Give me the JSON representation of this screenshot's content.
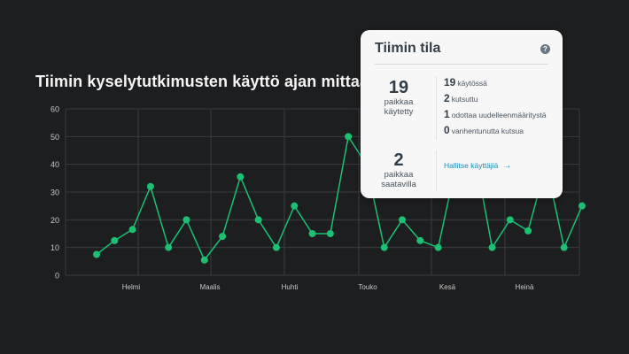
{
  "chart_data": {
    "type": "line",
    "title": "Tiimin kyselytutkimusten käyttö ajan mittaan",
    "xlabel": "",
    "ylabel": "",
    "ylim": [
      0,
      60
    ],
    "yticks": [
      0,
      10,
      20,
      30,
      40,
      50,
      60
    ],
    "x_tick_labels": [
      "Helmi",
      "Maalis",
      "Huhti",
      "Touko",
      "Kesä",
      "Heinä"
    ],
    "grid": true,
    "series": [
      {
        "name": "Käyttö",
        "color": "#1dbf73",
        "values": [
          7.5,
          12.5,
          16.5,
          32,
          10,
          20,
          5.5,
          14,
          35.5,
          20,
          10,
          25,
          15,
          15,
          50,
          40,
          10,
          20,
          12.5,
          10,
          40,
          45,
          10,
          20,
          16,
          40,
          10,
          25
        ]
      }
    ]
  },
  "card": {
    "title": "Tiimin tila",
    "help_icon": "?",
    "used": {
      "value": "19",
      "label_line1": "paikkaa",
      "label_line2": "käytetty"
    },
    "available": {
      "value": "2",
      "label_line1": "paikkaa",
      "label_line2": "saatavilla"
    },
    "breakdown": [
      {
        "value": "19",
        "label": "käytössä"
      },
      {
        "value": "2",
        "label": "kutsuttu"
      },
      {
        "value": "1",
        "label": "odottaa uudelleenmääritystä"
      },
      {
        "value": "0",
        "label": "vanhentunutta kutsua"
      }
    ],
    "manage_link": "Hallitse käyttäjiä",
    "manage_arrow": "→"
  },
  "colors": {
    "background": "#1d1e20",
    "line": "#1dbf73",
    "link": "#1a8db5"
  }
}
